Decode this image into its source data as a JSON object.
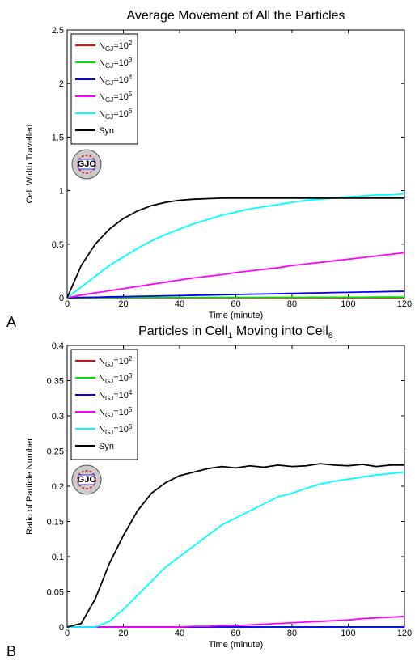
{
  "chart_data": [
    {
      "type": "line",
      "panel_label": "A",
      "title": "Average Movement of All the Particles",
      "x_label": "Time (minute)",
      "y_label": "Cell Width Travelled",
      "inset_label": "GJC",
      "xlim": [
        0,
        120
      ],
      "xticks": [
        0,
        20,
        40,
        60,
        80,
        100,
        120
      ],
      "ylim": [
        0,
        2.5
      ],
      "yticks": [
        0,
        0.5,
        1,
        1.5,
        2,
        2.5
      ],
      "grid": false,
      "legend": "upper left",
      "x": [
        0,
        5,
        10,
        15,
        20,
        25,
        30,
        35,
        40,
        45,
        50,
        55,
        60,
        65,
        70,
        75,
        80,
        85,
        90,
        95,
        100,
        105,
        110,
        115,
        120
      ],
      "series": [
        {
          "name": "NGJ=102",
          "color": "#ff0000",
          "values": [
            0,
            0,
            0,
            0,
            0,
            0,
            0,
            0,
            0,
            0,
            0,
            0,
            0,
            0,
            0,
            0,
            0,
            0,
            0,
            0,
            0,
            0,
            0,
            0,
            0
          ]
        },
        {
          "name": "NGJ=103",
          "color": "#00dd00",
          "values": [
            0,
            0,
            0.001,
            0.001,
            0.001,
            0.001,
            0.002,
            0.002,
            0.002,
            0.002,
            0.003,
            0.003,
            0.003,
            0.003,
            0.004,
            0.004,
            0.004,
            0.004,
            0.005,
            0.005,
            0.005,
            0.005,
            0.006,
            0.006,
            0.006
          ]
        },
        {
          "name": "NGJ=104",
          "color": "#0000ff",
          "values": [
            0,
            0.003,
            0.005,
            0.008,
            0.01,
            0.013,
            0.015,
            0.018,
            0.02,
            0.023,
            0.025,
            0.028,
            0.03,
            0.033,
            0.035,
            0.038,
            0.04,
            0.043,
            0.045,
            0.048,
            0.05,
            0.053,
            0.055,
            0.058,
            0.06
          ]
        },
        {
          "name": "NGJ=105",
          "color": "#ff00ff",
          "values": [
            0,
            0.025,
            0.045,
            0.065,
            0.085,
            0.105,
            0.125,
            0.145,
            0.165,
            0.185,
            0.2,
            0.215,
            0.235,
            0.25,
            0.265,
            0.28,
            0.3,
            0.315,
            0.33,
            0.345,
            0.36,
            0.375,
            0.39,
            0.405,
            0.42
          ]
        },
        {
          "name": "NGJ=106",
          "color": "#00ffff",
          "values": [
            0,
            0.1,
            0.2,
            0.3,
            0.38,
            0.46,
            0.53,
            0.59,
            0.64,
            0.69,
            0.73,
            0.77,
            0.8,
            0.83,
            0.85,
            0.87,
            0.89,
            0.91,
            0.92,
            0.93,
            0.94,
            0.95,
            0.96,
            0.96,
            0.97
          ]
        },
        {
          "name": "Syn",
          "color": "#000000",
          "values": [
            0,
            0.3,
            0.5,
            0.64,
            0.74,
            0.81,
            0.86,
            0.89,
            0.91,
            0.92,
            0.925,
            0.93,
            0.93,
            0.93,
            0.93,
            0.93,
            0.93,
            0.93,
            0.93,
            0.93,
            0.93,
            0.93,
            0.93,
            0.93,
            0.93
          ]
        }
      ]
    },
    {
      "type": "line",
      "panel_label": "B",
      "title": "Particles in Cell1 Moving into Cell8",
      "x_label": "Time (minute)",
      "y_label": "Ratio of Particle Number",
      "inset_label": "GJC",
      "xlim": [
        0,
        120
      ],
      "xticks": [
        0,
        20,
        40,
        60,
        80,
        100,
        120
      ],
      "ylim": [
        0,
        0.4
      ],
      "yticks": [
        0,
        0.05,
        0.1,
        0.15,
        0.2,
        0.25,
        0.3,
        0.35,
        0.4
      ],
      "grid": false,
      "legend": "upper left",
      "x": [
        0,
        5,
        10,
        15,
        20,
        25,
        30,
        35,
        40,
        45,
        50,
        55,
        60,
        65,
        70,
        75,
        80,
        85,
        90,
        95,
        100,
        105,
        110,
        115,
        120
      ],
      "series": [
        {
          "name": "NGJ=102",
          "color": "#ff0000",
          "values": [
            0,
            0,
            0,
            0,
            0,
            0,
            0,
            0,
            0,
            0,
            0,
            0,
            0,
            0,
            0,
            0,
            0,
            0,
            0,
            0,
            0,
            0,
            0,
            0,
            0
          ]
        },
        {
          "name": "NGJ=103",
          "color": "#00dd00",
          "values": [
            0,
            0,
            0,
            0,
            0,
            0,
            0,
            0,
            0,
            0,
            0,
            0,
            0,
            0,
            0,
            0,
            0,
            0,
            0,
            0,
            0,
            0,
            0,
            0,
            0
          ]
        },
        {
          "name": "NGJ=104",
          "color": "#0000ff",
          "values": [
            0,
            0,
            0,
            0,
            0,
            0,
            0,
            0,
            0,
            0,
            0,
            0,
            0,
            0,
            0,
            0,
            0,
            0,
            0,
            0,
            0,
            0,
            0,
            0,
            0
          ]
        },
        {
          "name": "NGJ=105",
          "color": "#ff00ff",
          "values": [
            0,
            0,
            0,
            0,
            0,
            0,
            0,
            0,
            0,
            0.001,
            0.001,
            0.002,
            0.002,
            0.003,
            0.004,
            0.005,
            0.006,
            0.007,
            0.008,
            0.009,
            0.01,
            0.012,
            0.013,
            0.014,
            0.015
          ]
        },
        {
          "name": "NGJ=106",
          "color": "#00ffff",
          "values": [
            0,
            0,
            0,
            0.008,
            0.025,
            0.045,
            0.065,
            0.085,
            0.1,
            0.115,
            0.13,
            0.145,
            0.155,
            0.165,
            0.175,
            0.185,
            0.19,
            0.197,
            0.203,
            0.207,
            0.21,
            0.213,
            0.216,
            0.218,
            0.22
          ]
        },
        {
          "name": "Syn",
          "color": "#000000",
          "values": [
            0,
            0.005,
            0.04,
            0.09,
            0.13,
            0.165,
            0.19,
            0.205,
            0.215,
            0.22,
            0.225,
            0.228,
            0.226,
            0.229,
            0.227,
            0.23,
            0.228,
            0.229,
            0.232,
            0.23,
            0.229,
            0.231,
            0.228,
            0.23,
            0.23
          ]
        }
      ]
    }
  ]
}
